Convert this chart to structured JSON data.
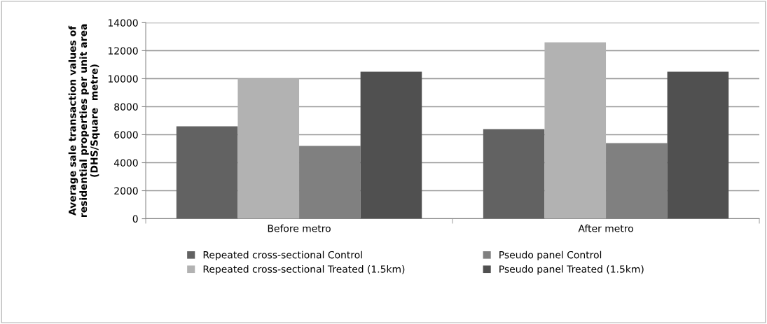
{
  "chart_data": {
    "type": "bar",
    "ylabel": "Average sale transaction values of residential properties per unit area (DHS/Square  metre)",
    "categories": [
      "Before metro",
      "After metro"
    ],
    "series": [
      {
        "name": "Repeated cross-sectional Control",
        "color": "#626262",
        "values": [
          6600,
          6400
        ]
      },
      {
        "name": "Repeated cross-sectional Treated (1.5km)",
        "color": "#b2b2b2",
        "values": [
          10000,
          12600
        ]
      },
      {
        "name": "Pseudo panel Control",
        "color": "#808080",
        "values": [
          5200,
          5400
        ]
      },
      {
        "name": "Pseudo panel Treated (1.5km)",
        "color": "#505050",
        "values": [
          10500,
          10500
        ]
      }
    ],
    "ylim": [
      0,
      14000
    ],
    "yticks": [
      0,
      2000,
      4000,
      6000,
      8000,
      10000,
      12000,
      14000
    ],
    "grid": "y",
    "legend": "bottom"
  }
}
